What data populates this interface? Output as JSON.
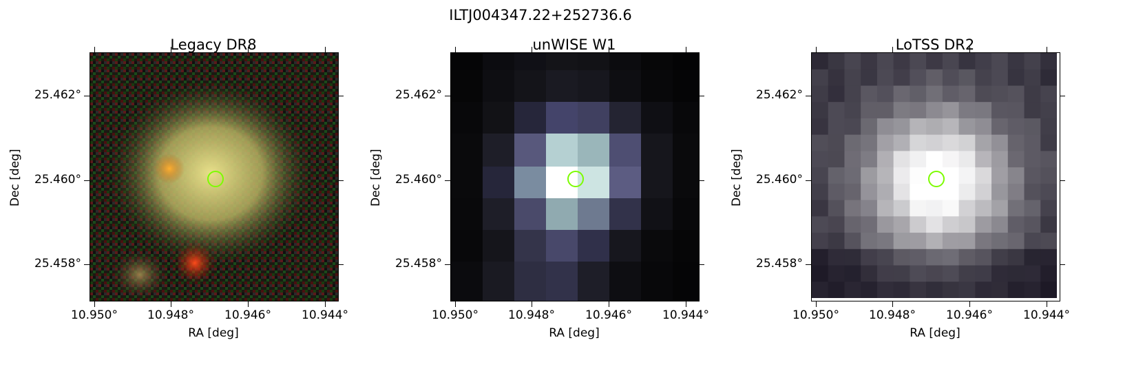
{
  "figure": {
    "title": "ILTJ004347.22+252736.6",
    "marker_color": "#7cfc00"
  },
  "panels": [
    {
      "title": "Legacy DR8",
      "xlabel": "RA [deg]",
      "ylabel": "Dec [deg]",
      "x_ticks": [
        "10.950°",
        "10.948°",
        "10.946°",
        "10.944°"
      ],
      "y_ticks": [
        "25.462°",
        "25.460°",
        "25.458°"
      ]
    },
    {
      "title": "unWISE W1",
      "xlabel": "RA [deg]",
      "ylabel": "Dec [deg]",
      "x_ticks": [
        "10.950°",
        "10.948°",
        "10.946°",
        "10.944°"
      ],
      "y_ticks": [
        "25.462°",
        "25.460°",
        "25.458°"
      ]
    },
    {
      "title": "LoTSS DR2",
      "xlabel": "RA [deg]",
      "ylabel": "Dec [deg]",
      "x_ticks": [
        "10.950°",
        "10.948°",
        "10.946°",
        "10.944°"
      ],
      "y_ticks": [
        "25.462°",
        "25.460°",
        "25.458°"
      ]
    }
  ]
}
